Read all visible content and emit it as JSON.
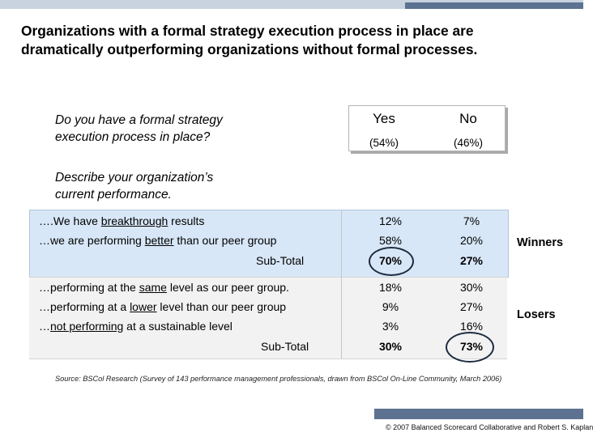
{
  "title_line1": "Organizations with a formal strategy execution process in place are",
  "title_line2": "dramatically outperforming organizations without formal processes.",
  "question_line1": "Do you have a formal strategy",
  "question_line2": "execution process in place?",
  "describe_line1": "Describe your organization’s",
  "describe_line2": "current performance.",
  "columns": {
    "yes": {
      "label": "Yes",
      "share": "(54%)"
    },
    "no": {
      "label": "No",
      "share": "(46%)"
    }
  },
  "winners": {
    "group_label": "Winners",
    "rows": [
      {
        "pre": "….We have ",
        "key": "breakthrough",
        "post": " results",
        "yes": "12%",
        "no": "7%"
      },
      {
        "pre": "…we are performing ",
        "key": "better",
        "post": " than our peer group",
        "yes": "58%",
        "no": "20%"
      }
    ],
    "subtotal": {
      "label": "Sub-Total",
      "yes": "70%",
      "no": "27%"
    }
  },
  "losers": {
    "group_label": "Losers",
    "rows": [
      {
        "pre": "…performing at the ",
        "key": "same",
        "post": " level as our peer group.",
        "yes": "18%",
        "no": "30%"
      },
      {
        "pre": "…performing at a ",
        "key": "lower",
        "post": " level than our peer group",
        "yes": "9%",
        "no": "27%"
      },
      {
        "pre": "…",
        "key": "not performing",
        "post": " at a sustainable level",
        "yes": "3%",
        "no": "16%"
      }
    ],
    "subtotal": {
      "label": "Sub-Total",
      "yes": "30%",
      "no": "73%"
    }
  },
  "source": "Source: BSCol Research (Survey of 143 performance management professionals, drawn from BSCol On-Line Community, March 2006)",
  "footer": "© 2007 Balanced Scorecard Collaborative and Robert S. Kaplan",
  "colors": {
    "winners_bg": "#d8e7f7",
    "losers_bg": "#f2f2f2",
    "accent": "#5d7290"
  }
}
